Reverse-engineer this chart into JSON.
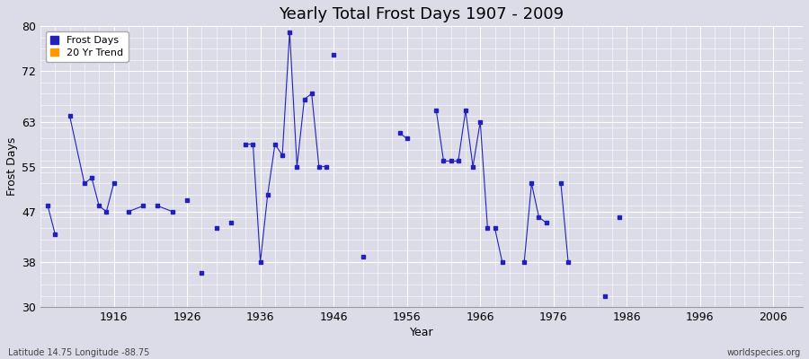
{
  "title": "Yearly Total Frost Days 1907 - 2009",
  "xlabel": "Year",
  "ylabel": "Frost Days",
  "xlim": [
    1906,
    2010
  ],
  "ylim": [
    30,
    80
  ],
  "yticks": [
    30,
    38,
    47,
    55,
    63,
    72,
    80
  ],
  "xticks": [
    1916,
    1926,
    1936,
    1946,
    1956,
    1966,
    1976,
    1986,
    1996,
    2006
  ],
  "line_color": "#2222bb",
  "marker_color": "#2222bb",
  "background_color": "#dcdce8",
  "plot_bg_color": "#dcdce8",
  "grid_color": "#ffffff",
  "legend_labels": [
    "Frost Days",
    "20 Yr Trend"
  ],
  "legend_colors": [
    "#2222bb",
    "#ff9900"
  ],
  "connected_segments": [
    [
      [
        1907,
        48
      ],
      [
        1908,
        43
      ]
    ],
    [
      [
        1910,
        64
      ],
      [
        1912,
        52
      ],
      [
        1913,
        53
      ],
      [
        1914,
        48
      ],
      [
        1915,
        47
      ],
      [
        1916,
        52
      ]
    ],
    [
      [
        1918,
        47
      ],
      [
        1920,
        48
      ]
    ],
    [
      [
        1922,
        48
      ],
      [
        1924,
        47
      ]
    ],
    [
      [
        1926,
        49
      ]
    ],
    [
      [
        1928,
        36
      ]
    ],
    [
      [
        1930,
        44
      ]
    ],
    [
      [
        1932,
        45
      ]
    ],
    [
      [
        1934,
        59
      ],
      [
        1935,
        59
      ],
      [
        1936,
        38
      ],
      [
        1937,
        50
      ],
      [
        1938,
        59
      ],
      [
        1939,
        57
      ],
      [
        1940,
        79
      ],
      [
        1941,
        55
      ],
      [
        1942,
        67
      ],
      [
        1943,
        68
      ],
      [
        1944,
        55
      ],
      [
        1945,
        55
      ]
    ],
    [
      [
        1946,
        75
      ]
    ],
    [
      [
        1950,
        39
      ]
    ],
    [
      [
        1955,
        61
      ],
      [
        1956,
        60
      ]
    ],
    [
      [
        1960,
        65
      ],
      [
        1961,
        56
      ],
      [
        1962,
        56
      ],
      [
        1963,
        56
      ],
      [
        1964,
        65
      ],
      [
        1965,
        55
      ],
      [
        1966,
        63
      ],
      [
        1967,
        44
      ]
    ],
    [
      [
        1968,
        44
      ],
      [
        1969,
        38
      ]
    ],
    [
      [
        1972,
        38
      ],
      [
        1973,
        52
      ],
      [
        1974,
        46
      ],
      [
        1975,
        45
      ]
    ],
    [
      [
        1977,
        52
      ],
      [
        1978,
        38
      ]
    ],
    [
      [
        1983,
        32
      ]
    ],
    [
      [
        1985,
        46
      ]
    ]
  ],
  "isolated_points": [
    [
      1926,
      49
    ],
    [
      1928,
      36
    ],
    [
      1930,
      44
    ],
    [
      1932,
      45
    ],
    [
      1946,
      75
    ],
    [
      1950,
      39
    ],
    [
      1983,
      32
    ],
    [
      1985,
      46
    ]
  ],
  "title_fontsize": 13,
  "axis_fontsize": 9,
  "tick_fontsize": 9,
  "legend_fontsize": 8,
  "bottom_left_text": "Latitude 14.75 Longitude -88.75",
  "bottom_right_text": "worldspecies.org"
}
